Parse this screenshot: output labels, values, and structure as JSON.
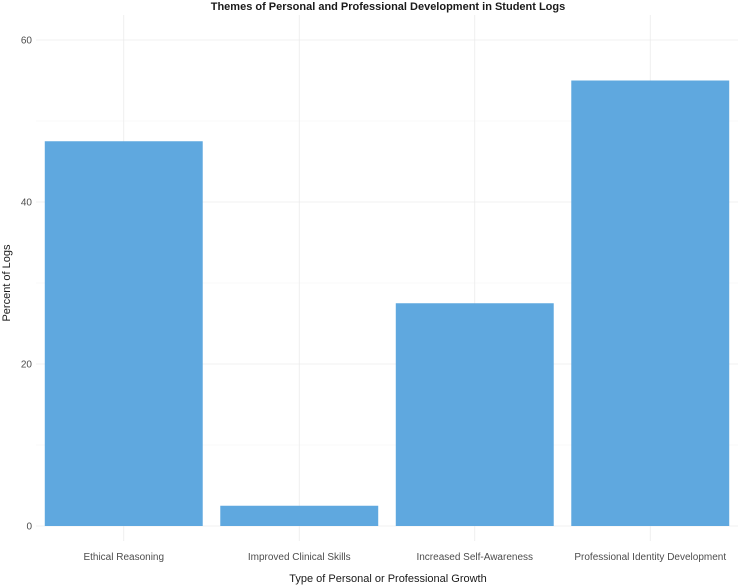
{
  "chart_data": {
    "type": "bar",
    "title": "Themes of Personal and Professional Development in Student Logs",
    "xlabel": "Type of Personal or Professional Growth",
    "ylabel": "Percent of Logs",
    "categories": [
      "Ethical Reasoning",
      "Improved Clinical Skills",
      "Increased Self-Awareness",
      "Professional Identity Development"
    ],
    "values": [
      47.5,
      2.5,
      27.5,
      55.0
    ],
    "ylim": [
      0,
      60
    ],
    "yticks": [
      0,
      20,
      40,
      60
    ],
    "grid": true,
    "bar_color": "#5fa8df"
  }
}
